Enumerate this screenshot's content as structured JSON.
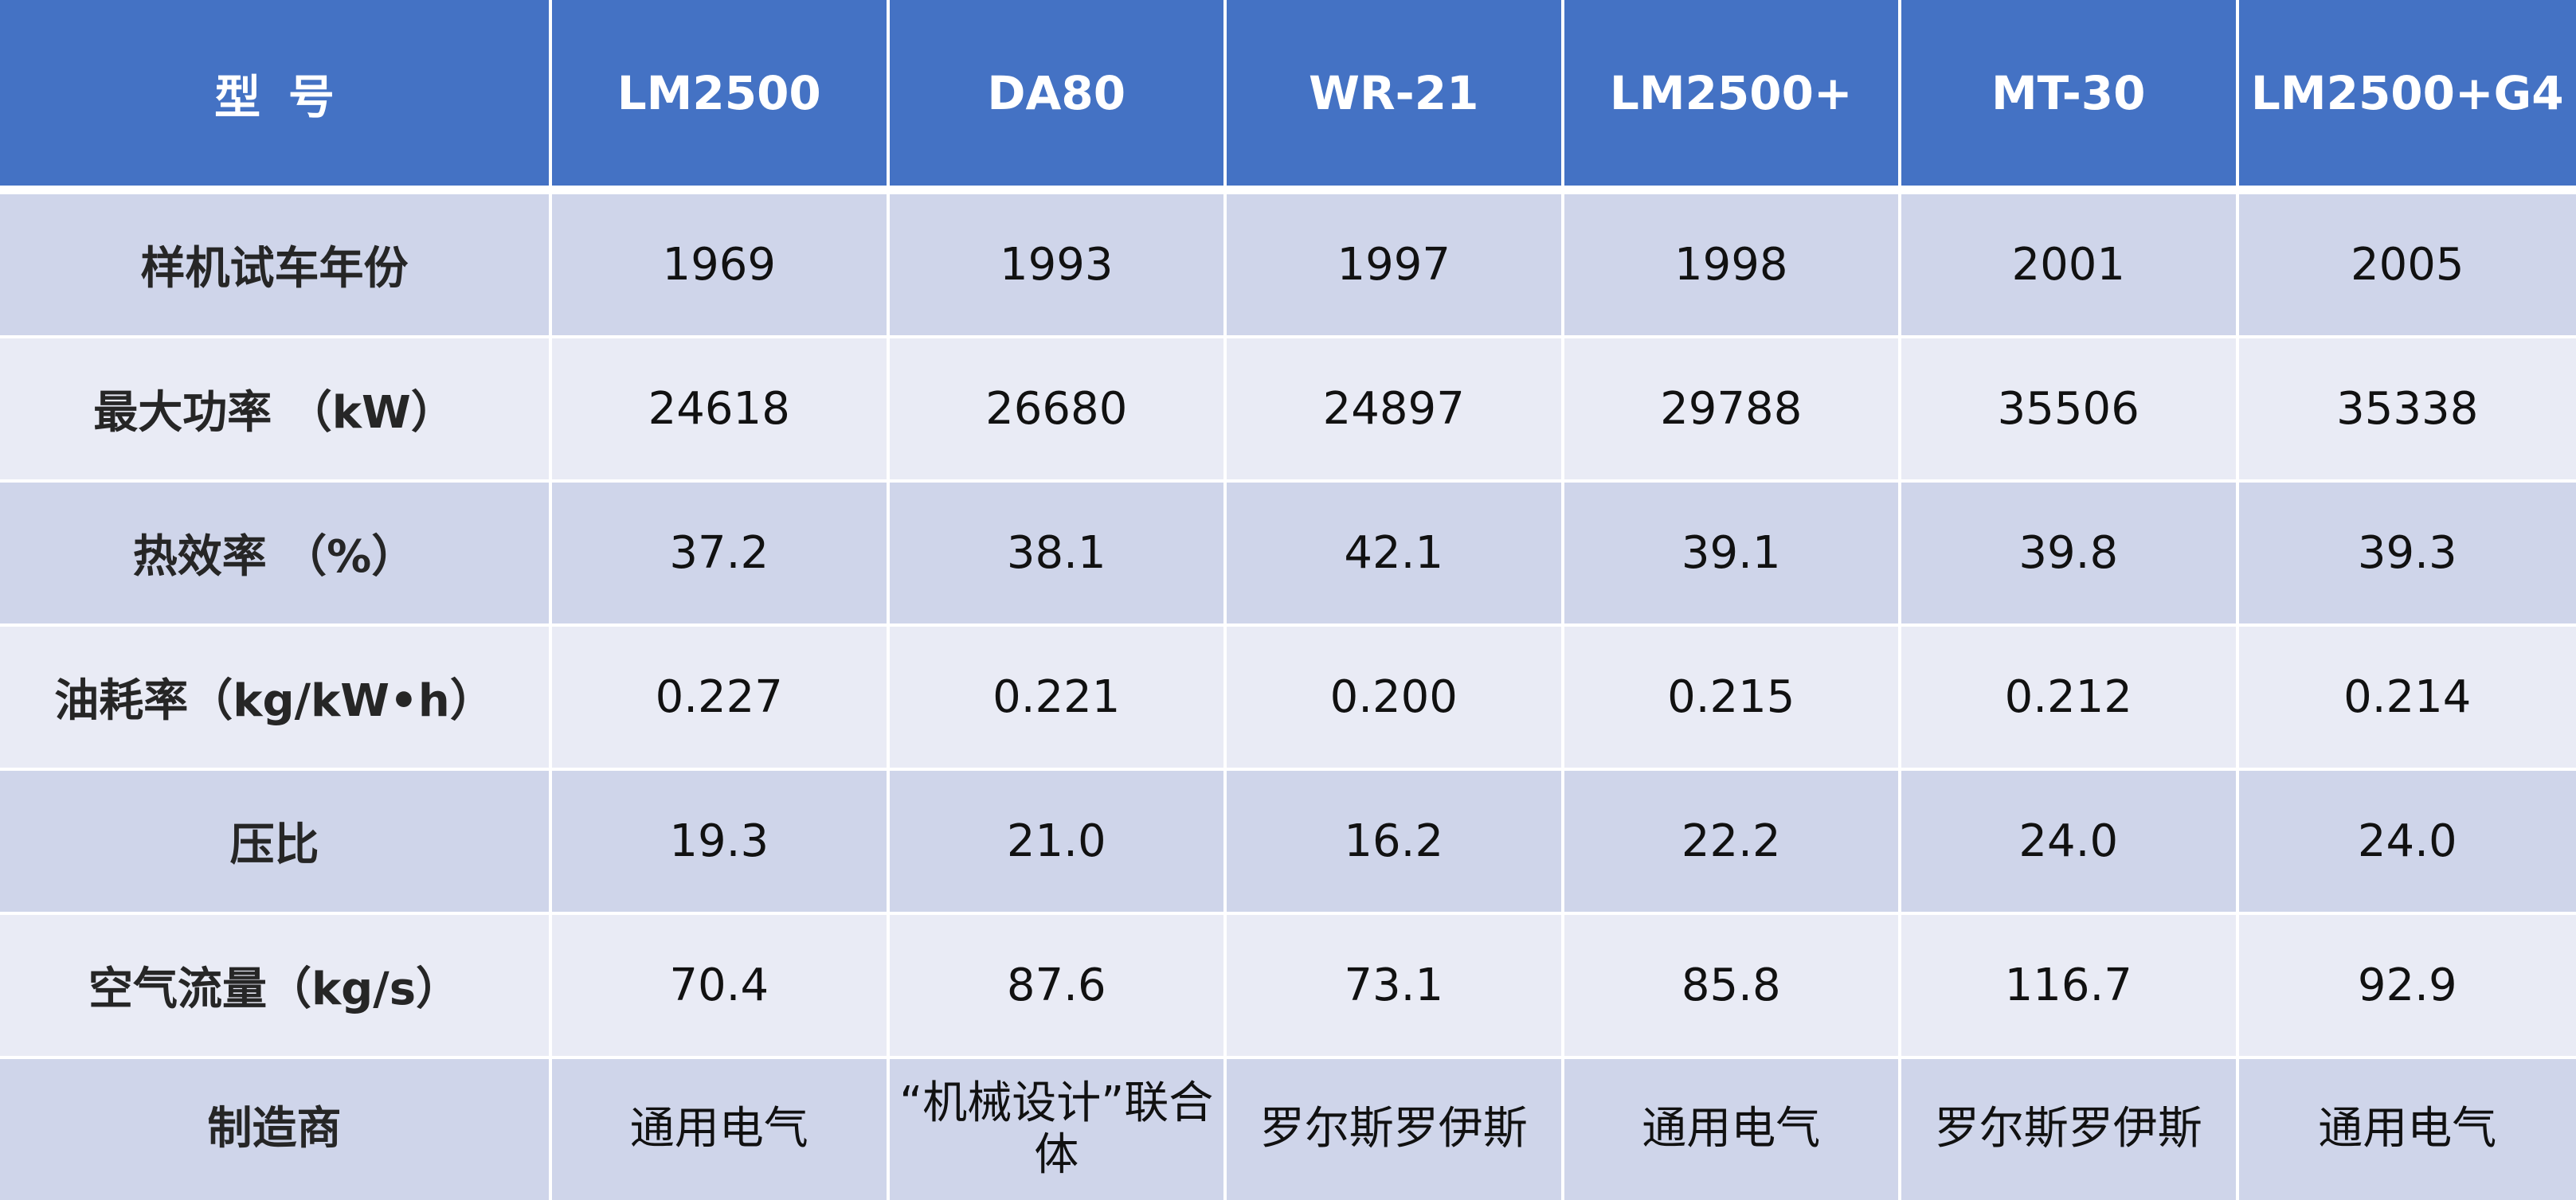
{
  "table": {
    "header": {
      "label": "型号",
      "models": [
        "LM2500",
        "DA80",
        "WR-21",
        "LM2500+",
        "MT-30",
        "LM2500+G4"
      ]
    },
    "rows": [
      {
        "label": "样机试车年份",
        "values": [
          "1969",
          "1993",
          "1997",
          "1998",
          "2001",
          "2005"
        ]
      },
      {
        "label": "最大功率 （kW）",
        "values": [
          "24618",
          "26680",
          "24897",
          "29788",
          "35506",
          "35338"
        ]
      },
      {
        "label": "热效率 （%）",
        "values": [
          "37.2",
          "38.1",
          "42.1",
          "39.1",
          "39.8",
          "39.3"
        ]
      },
      {
        "label": "油耗率（kg/kW•h）",
        "values": [
          "0.227",
          "0.221",
          "0.200",
          "0.215",
          "0.212",
          "0.214"
        ]
      },
      {
        "label": "压比",
        "values": [
          "19.3",
          "21.0",
          "16.2",
          "22.2",
          "24.0",
          "24.0"
        ]
      },
      {
        "label": "空气流量（kg/s）",
        "values": [
          "70.4",
          "87.6",
          "73.1",
          "85.8",
          "116.7",
          "92.9"
        ]
      },
      {
        "label": "制造商",
        "values": [
          "通用电气",
          "“机械设计”联合体",
          "罗尔斯罗伊斯",
          "通用电气",
          "罗尔斯罗伊斯",
          "通用电气"
        ]
      }
    ]
  },
  "colors": {
    "header_bg": "#4472C4",
    "row_odd_bg": "#CFD5EA",
    "row_even_bg": "#E9EBF5",
    "header_text": "#FFFFFF"
  }
}
